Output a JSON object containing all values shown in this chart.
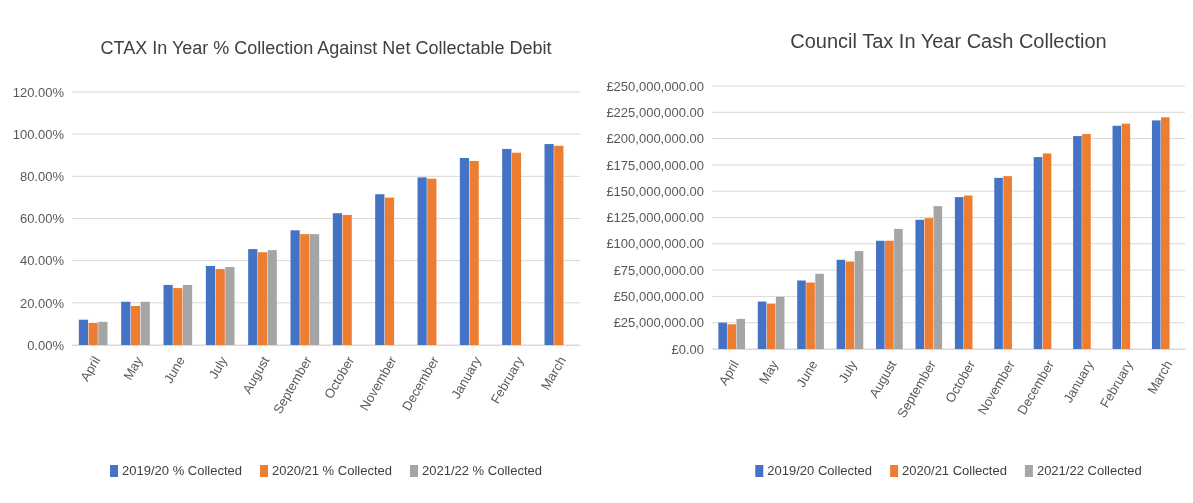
{
  "chart_data": [
    {
      "type": "bar",
      "title": "CTAX In Year % Collection Against Net Collectable Debit",
      "categories": [
        "April",
        "May",
        "June",
        "July",
        "August",
        "September",
        "October",
        "November",
        "December",
        "January",
        "February",
        "March"
      ],
      "series": [
        {
          "name": "2019/20 % Collected",
          "color": "#4472c4",
          "values": [
            12,
            20.5,
            28.5,
            37.5,
            45.5,
            54.4,
            62.5,
            71.5,
            79.5,
            88.7,
            93,
            95.3
          ]
        },
        {
          "name": "2020/21 % Collected",
          "color": "#ed7d31",
          "values": [
            10.5,
            18.5,
            27,
            36,
            44,
            52.6,
            61.7,
            69.9,
            78.9,
            87.3,
            91.2,
            94.5
          ]
        },
        {
          "name": "2021/22 % Collected",
          "color": "#a5a5a5",
          "values": [
            11,
            20.5,
            28.5,
            37,
            45,
            52.6,
            null,
            null,
            null,
            null,
            null,
            null
          ]
        }
      ],
      "ylim": [
        0,
        120
      ],
      "yticks": [
        {
          "value": 0,
          "label": "0.00%"
        },
        {
          "value": 20,
          "label": "20.00%"
        },
        {
          "value": 40,
          "label": "40.00%"
        },
        {
          "value": 60,
          "label": "60.00%"
        },
        {
          "value": 80,
          "label": "80.00%"
        },
        {
          "value": 100,
          "label": "100.00%"
        },
        {
          "value": 120,
          "label": "120.00%"
        }
      ],
      "grid": "y",
      "legend": "bottom"
    },
    {
      "type": "bar",
      "title": "Council Tax In Year Cash Collection",
      "categories": [
        "April",
        "May",
        "June",
        "July",
        "August",
        "September",
        "October",
        "November",
        "December",
        "January",
        "February",
        "March"
      ],
      "series": [
        {
          "name": "2019/20 Collected",
          "color": "#4472c4",
          "values": [
            25100000,
            45100000,
            65100000,
            84800000,
            102900000,
            122800000,
            144400000,
            162700000,
            182400000,
            202400000,
            212200000,
            217300000
          ]
        },
        {
          "name": "2020/21 Collected",
          "color": "#ed7d31",
          "values": [
            23500000,
            43200000,
            63200000,
            83200000,
            102900000,
            124400000,
            145900000,
            164300000,
            185900000,
            204300000,
            214200000,
            220200000
          ]
        },
        {
          "name": "2021/22 Collected",
          "color": "#a5a5a5",
          "values": [
            28600000,
            49600000,
            71500000,
            93100000,
            114200000,
            135800000,
            null,
            null,
            null,
            null,
            null,
            null
          ]
        }
      ],
      "ylim": [
        0,
        250000000
      ],
      "yticks": [
        {
          "value": 0,
          "label": "£0.00"
        },
        {
          "value": 25000000,
          "label": "£25,000,000.00"
        },
        {
          "value": 50000000,
          "label": "£50,000,000.00"
        },
        {
          "value": 75000000,
          "label": "£75,000,000.00"
        },
        {
          "value": 100000000,
          "label": "£100,000,000.00"
        },
        {
          "value": 125000000,
          "label": "£125,000,000.00"
        },
        {
          "value": 150000000,
          "label": "£150,000,000.00"
        },
        {
          "value": 175000000,
          "label": "£175,000,000.00"
        },
        {
          "value": 200000000,
          "label": "£200,000,000.00"
        },
        {
          "value": 225000000,
          "label": "£225,000,000.00"
        },
        {
          "value": 250000000,
          "label": "£250,000,000.00"
        }
      ],
      "grid": "y",
      "legend": "bottom"
    }
  ]
}
